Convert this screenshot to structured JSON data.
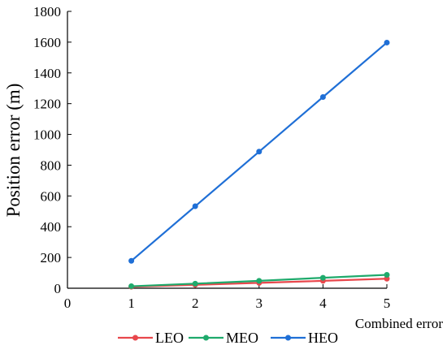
{
  "chart_data": {
    "type": "line",
    "title": "",
    "xlabel": "Combined error",
    "ylabel": "Position error (m)",
    "xlim": [
      0,
      5
    ],
    "ylim": [
      0,
      1800
    ],
    "x_ticks": [
      0,
      1,
      2,
      3,
      4,
      5
    ],
    "y_ticks": [
      0,
      200,
      400,
      600,
      800,
      1000,
      1200,
      1400,
      1600,
      1800
    ],
    "grid": false,
    "legend_position": "bottom",
    "x": [
      1,
      2,
      3,
      4,
      5
    ],
    "series": [
      {
        "name": "LEO",
        "color": "#e8474c",
        "values": [
          10,
          22,
          35,
          48,
          62
        ]
      },
      {
        "name": "MEO",
        "color": "#1faa6c",
        "values": [
          13,
          30,
          48,
          68,
          87
        ]
      },
      {
        "name": "HEO",
        "color": "#1f6fd6",
        "values": [
          178,
          533,
          888,
          1243,
          1597
        ]
      }
    ]
  }
}
